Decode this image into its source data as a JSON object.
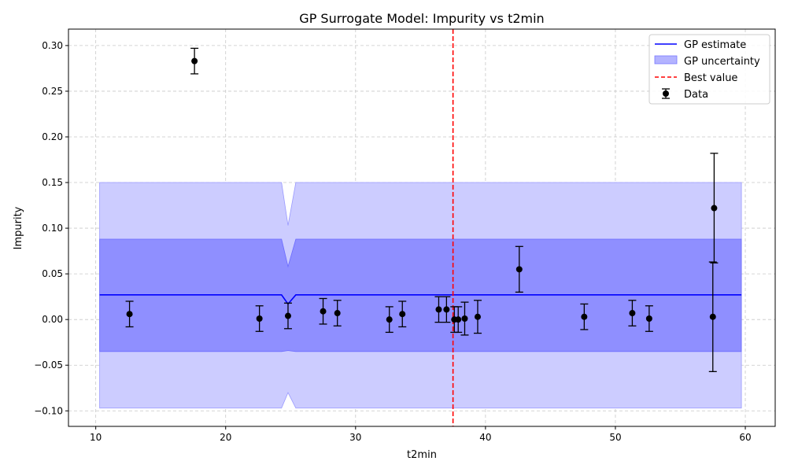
{
  "chart_data": {
    "type": "line",
    "title": "GP Surrogate Model: Impurity vs t2min",
    "xlabel": "t2min",
    "ylabel": "Impurity",
    "xlim": [
      7.9,
      62.3
    ],
    "ylim": [
      -0.117,
      0.318
    ],
    "xticks": [
      10,
      20,
      30,
      40,
      50,
      60
    ],
    "yticks": [
      -0.1,
      -0.05,
      0.0,
      0.05,
      0.1,
      0.15,
      0.2,
      0.25,
      0.3
    ],
    "xtick_labels": [
      "10",
      "20",
      "30",
      "40",
      "50",
      "60"
    ],
    "ytick_labels": [
      "−0.10",
      "−0.05",
      "0.00",
      "0.05",
      "0.10",
      "0.15",
      "0.20",
      "0.25",
      "0.30"
    ],
    "grid": true,
    "legend_position": "top-right",
    "legend": {
      "estimate": "GP estimate",
      "uncertainty": "GP uncertainty",
      "best": "Best value",
      "data": "Data"
    },
    "colors": {
      "estimate": "#0000ff",
      "band_outer": "#ccccff",
      "band_inner": "#8f8fff",
      "best": "#ff0000",
      "data": "#000000",
      "grid": "#c8c8c8"
    },
    "gp_estimate": {
      "x": [
        10.3,
        24.3,
        24.8,
        25.4,
        59.7
      ],
      "y": [
        0.027,
        0.027,
        0.017,
        0.027,
        0.027
      ]
    },
    "band_inner": {
      "x": [
        10.3,
        24.3,
        24.8,
        25.4,
        59.7
      ],
      "upper": [
        0.088,
        0.088,
        0.058,
        0.088,
        0.088
      ],
      "lower": [
        -0.035,
        -0.035,
        -0.034,
        -0.035,
        -0.035
      ]
    },
    "band_outer": {
      "x": [
        10.3,
        24.3,
        24.8,
        25.4,
        59.7
      ],
      "upper": [
        0.15,
        0.15,
        0.103,
        0.15,
        0.15
      ],
      "lower": [
        -0.097,
        -0.097,
        -0.08,
        -0.097,
        -0.097
      ]
    },
    "best_value_x": 37.5,
    "data_points": [
      {
        "x": 12.6,
        "y": 0.006,
        "err": 0.014
      },
      {
        "x": 17.6,
        "y": 0.283,
        "err": 0.014
      },
      {
        "x": 22.6,
        "y": 0.001,
        "err": 0.014
      },
      {
        "x": 24.8,
        "y": 0.004,
        "err": 0.014
      },
      {
        "x": 27.5,
        "y": 0.009,
        "err": 0.014
      },
      {
        "x": 28.6,
        "y": 0.007,
        "err": 0.014
      },
      {
        "x": 32.6,
        "y": 0.0,
        "err": 0.014
      },
      {
        "x": 33.6,
        "y": 0.006,
        "err": 0.014
      },
      {
        "x": 36.4,
        "y": 0.011,
        "err": 0.014
      },
      {
        "x": 37.0,
        "y": 0.011,
        "err": 0.014
      },
      {
        "x": 37.6,
        "y": 0.0,
        "err": 0.014
      },
      {
        "x": 37.9,
        "y": 0.0,
        "err": 0.014
      },
      {
        "x": 38.4,
        "y": 0.001,
        "err": 0.018
      },
      {
        "x": 39.4,
        "y": 0.003,
        "err": 0.018
      },
      {
        "x": 42.6,
        "y": 0.055,
        "err": 0.025
      },
      {
        "x": 47.6,
        "y": 0.003,
        "err": 0.014
      },
      {
        "x": 51.3,
        "y": 0.007,
        "err": 0.014
      },
      {
        "x": 52.6,
        "y": 0.001,
        "err": 0.014
      },
      {
        "x": 57.5,
        "y": 0.003,
        "err": 0.06
      },
      {
        "x": 57.6,
        "y": 0.122,
        "err": 0.06
      }
    ]
  }
}
